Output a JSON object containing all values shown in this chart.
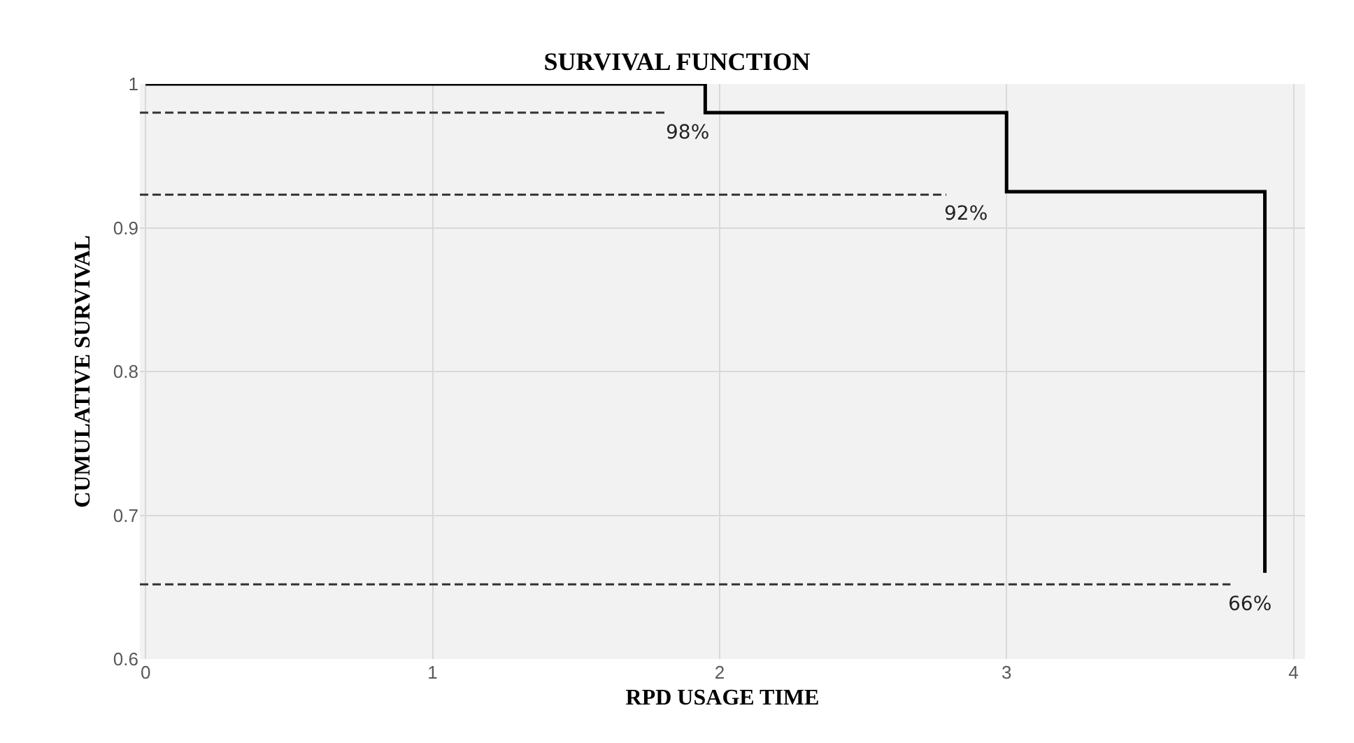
{
  "chart_data": {
    "type": "step",
    "title": "SURVIVAL FUNCTION",
    "xlabel": "RPD USAGE TIME",
    "ylabel": "CUMULATIVE SURVIVAL",
    "xlim": [
      -0.02,
      4.04
    ],
    "xticks": [
      0,
      1,
      2,
      3,
      4
    ],
    "ylim": [
      0.6,
      1.0
    ],
    "yticks": [
      0.6,
      0.7,
      0.8,
      0.9,
      1
    ],
    "grid": true,
    "series": [
      {
        "color": "#000000",
        "x": [
          0,
          1.95,
          3.0,
          3.9
        ],
        "values": [
          1,
          0.98,
          0.925,
          0.66
        ],
        "line_style": "solid"
      },
      {
        "type": "line",
        "color": "#333333",
        "x": [
          -0.02,
          1.82
        ],
        "values": [
          0.98,
          0.98
        ],
        "line_style": "dashed"
      },
      {
        "type": "line",
        "color": "#333333",
        "x": [
          -0.02,
          2.79
        ],
        "values": [
          0.923,
          0.923
        ],
        "line_style": "dashed"
      },
      {
        "type": "line",
        "color": "#333333",
        "x": [
          -0.02,
          3.78
        ],
        "values": [
          0.652,
          0.652
        ],
        "line_style": "dashed"
      }
    ],
    "annotations": [
      {
        "text": "98%",
        "x": 1.82,
        "y": 0.98
      },
      {
        "text": "92%",
        "x": 2.79,
        "y": 0.923
      },
      {
        "text": "66%",
        "x": 3.78,
        "y": 0.652
      }
    ]
  }
}
